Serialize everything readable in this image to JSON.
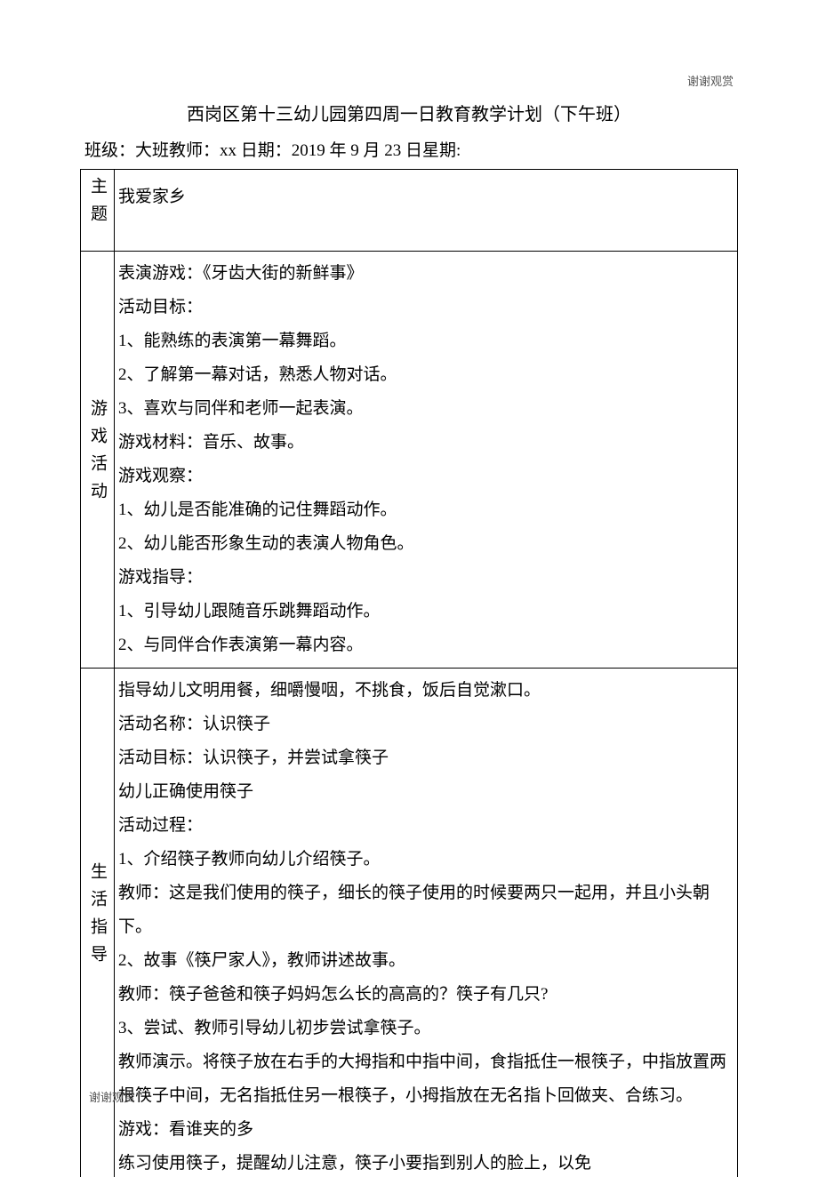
{
  "watermark": {
    "topRight": "谢谢观赏",
    "bottomLeft": "谢谢观赏"
  },
  "title": "西岗区第十三幼儿园第四周一日教育教学计划（下午班）",
  "meta": "班级：大班教师：xx 日期：2019 年 9 月 23 日星期:",
  "sections": {
    "theme": {
      "label": "主题",
      "content": "我爱家乡"
    },
    "game": {
      "label": "游戏活动",
      "lines": [
        "表演游戏：《牙齿大街的新鲜事》",
        "活动目标：",
        "1、能熟练的表演第一幕舞蹈。",
        "2、了解第一幕对话，熟悉人物对话。",
        "3、喜欢与同伴和老师一起表演。",
        "游戏材料：音乐、故事。",
        "游戏观察：",
        "1、幼儿是否能准确的记住舞蹈动作。",
        "2、幼儿能否形象生动的表演人物角色。",
        "游戏指导：",
        "1、引导幼儿跟随音乐跳舞蹈动作。",
        "2、与同伴合作表演第一幕内容。"
      ]
    },
    "life": {
      "label": "生活指导",
      "lines": [
        "指导幼儿文明用餐，细嚼慢咽，不挑食，饭后自觉漱口。",
        "活动名称：认识筷子",
        "活动目标：认识筷子，并尝试拿筷子",
        "幼儿正确使用筷子",
        "活动过程：",
        "1、介绍筷子教师向幼儿介绍筷子。",
        "教师：这是我们使用的筷子，细长的筷子使用的时候要两只一起用，并且小头朝下。",
        "2、故事《筷尸家人》，教师讲述故事。",
        "教师：筷子爸爸和筷子妈妈怎么长的高高的？筷子有几只?",
        "3、尝试、教师引导幼儿初步尝试拿筷子。",
        "教师演示。将筷子放在右手的大拇指和中指中间，食指抵住一根筷子，中指放置两根筷子中间，无名指抵住另一根筷子，小拇指放在无名指卜回做夹、合练习。",
        "游戏：看谁夹的多",
        "练习使用筷子，提醒幼儿注意，筷子小要指到别人的脸上，以免"
      ]
    }
  },
  "styling": {
    "bodyWidth": 920,
    "bodyHeight": 1303,
    "fontFamily": "SimSun",
    "fontSize": 19,
    "textColor": "#000000",
    "backgroundColor": "#ffffff",
    "borderColor": "#000000",
    "watermarkColor": "#555555",
    "watermarkFontSize": 13,
    "lineHeight": 2.0,
    "labelCellWidth": 38
  }
}
